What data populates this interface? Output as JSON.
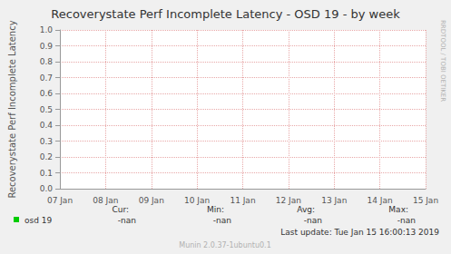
{
  "chart_data": {
    "type": "line",
    "title": "Recoverystate Perf Incomplete Latency - OSD 19 - by week",
    "y_label": "Recoverystate Perf Incomplete Latency",
    "categories": [
      "07 Jan",
      "08 Jan",
      "09 Jan",
      "10 Jan",
      "11 Jan",
      "12 Jan",
      "13 Jan",
      "14 Jan",
      "15 Jan"
    ],
    "series": [
      {
        "name": "osd 19",
        "color": "#00cc00",
        "values": [
          null,
          null,
          null,
          null,
          null,
          null,
          null,
          null,
          null
        ]
      }
    ],
    "ylim": [
      0,
      1
    ],
    "yticks": [
      {
        "value": 0,
        "label": "0.0"
      },
      0.1,
      0.2,
      0.3,
      0.4,
      0.5,
      0.6,
      0.7,
      0.8,
      0.9,
      {
        "value": 1,
        "label": "1.0"
      }
    ],
    "grid": true,
    "legend_values": {
      "headers": [
        "Cur:",
        "Min:",
        "Avg:",
        "Max:"
      ],
      "values": [
        "-nan",
        "-nan",
        "-nan",
        "-nan"
      ]
    },
    "last_update": "Last update: Tue Jan 15 16:00:13 2019",
    "footer": "Munin 2.0.37-1ubuntu0.1",
    "side_text": "RRDTOOL / TOBI OETIKER"
  }
}
